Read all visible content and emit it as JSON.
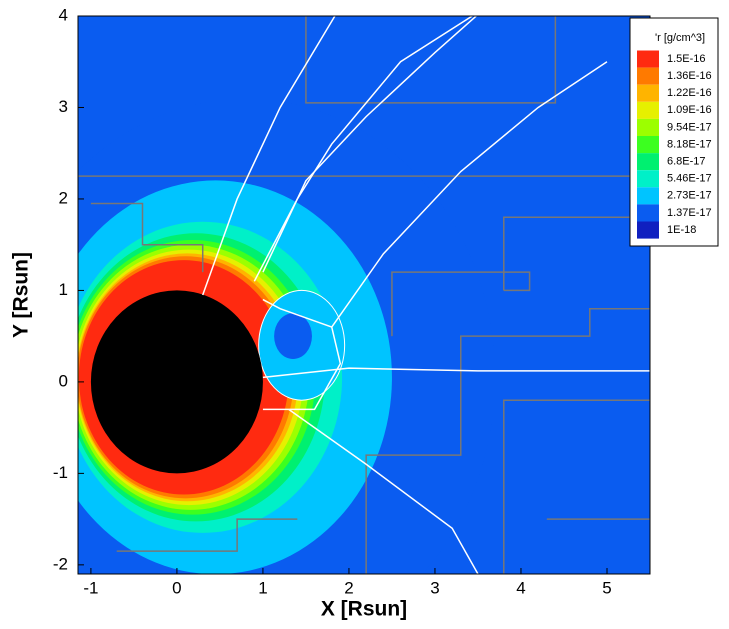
{
  "chart_data": {
    "type": "contour",
    "colorbar_title": "'r [g/cm^3]",
    "x_label": "X [Rsun]",
    "y_label": "Y [Rsun]",
    "xlim": [
      -1.15,
      5.5
    ],
    "ylim": [
      -2.1,
      4
    ],
    "xticks": [
      -1,
      0,
      1,
      2,
      3,
      4,
      5
    ],
    "yticks": [
      -2,
      -1,
      0,
      1,
      2,
      3,
      4
    ],
    "levels": [
      {
        "value": 1.5e-16,
        "label": "1.5E-16"
      },
      {
        "value": 1.36e-16,
        "label": "1.36E-16"
      },
      {
        "value": 1.22e-16,
        "label": "1.22E-16"
      },
      {
        "value": 1.09e-16,
        "label": "1.09E-16"
      },
      {
        "value": 9.54e-17,
        "label": "9.54E-17"
      },
      {
        "value": 8.18e-17,
        "label": "8.18E-17"
      },
      {
        "value": 6.8e-17,
        "label": "6.8E-17"
      },
      {
        "value": 5.46e-17,
        "label": "5.46E-17"
      },
      {
        "value": 2.73e-17,
        "label": "2.73E-17"
      },
      {
        "value": 1.37e-17,
        "label": "1.37E-17"
      },
      {
        "value": 1e-18,
        "label": "1E-18"
      }
    ],
    "level_colors": [
      "#ff2a10",
      "#ff7a00",
      "#ffb400",
      "#e6f000",
      "#9cff00",
      "#3cff20",
      "#00f070",
      "#00f0c8",
      "#00c4ff",
      "#0a5cf0",
      "#1020c0"
    ]
  }
}
